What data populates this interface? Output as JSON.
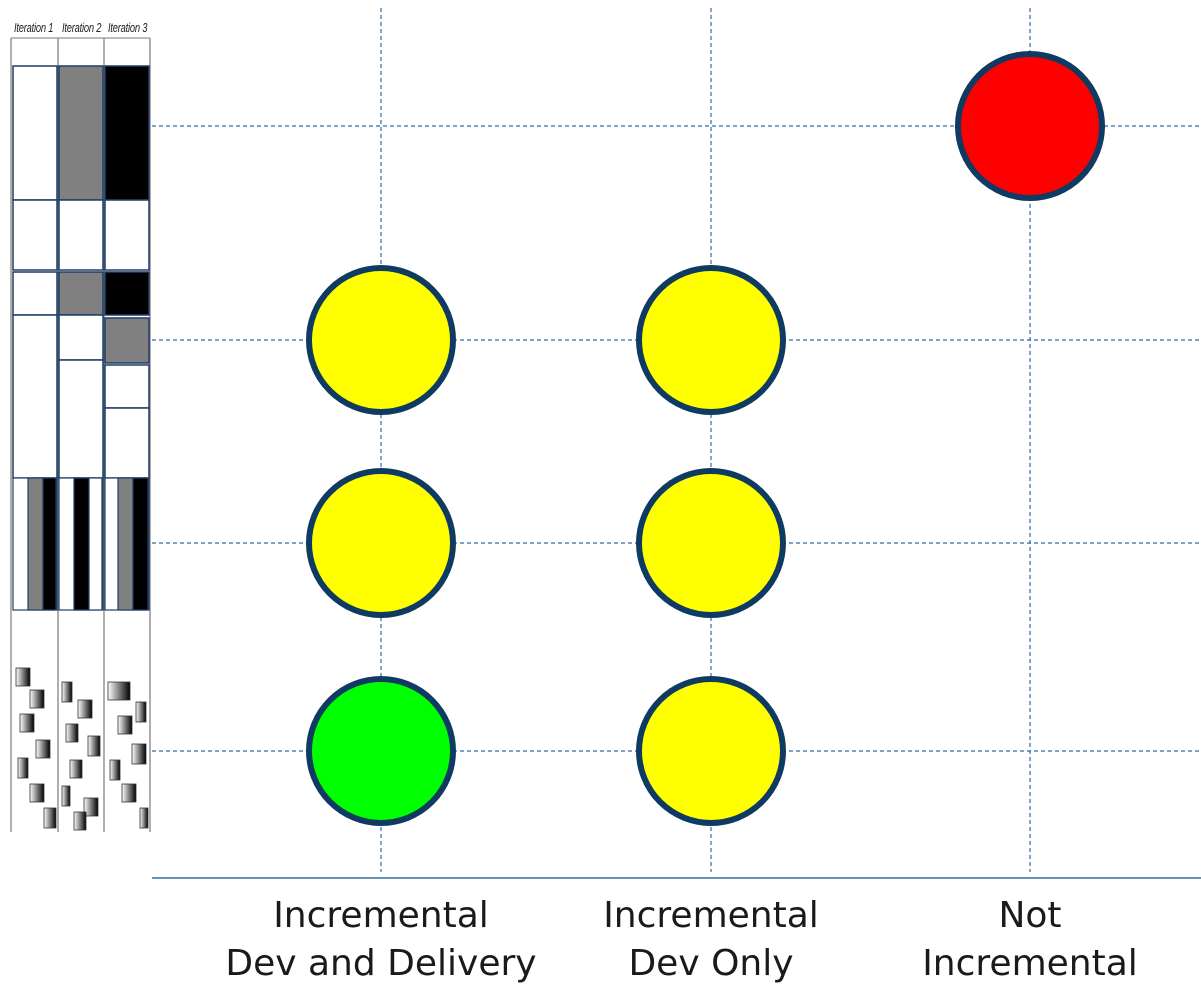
{
  "iterations": [
    "Iteration 1",
    "Iteration 2",
    "Iteration 3"
  ],
  "columns": [
    {
      "line1": "Incremental",
      "line2": "Dev and Delivery"
    },
    {
      "line1": "Incremental",
      "line2": "Dev Only"
    },
    {
      "line1": "Not",
      "line2": "Incremental"
    }
  ],
  "status": {
    "rows": [
      [
        "",
        "",
        "red"
      ],
      [
        "yellow",
        "yellow",
        ""
      ],
      [
        "yellow",
        "yellow",
        ""
      ],
      [
        "green",
        "yellow",
        ""
      ]
    ],
    "colors": {
      "red": "#ff0000",
      "yellow": "#ffff00",
      "green": "#00ff00",
      "outline": "#0f3a62",
      "grid": "#2e6ea6"
    }
  }
}
